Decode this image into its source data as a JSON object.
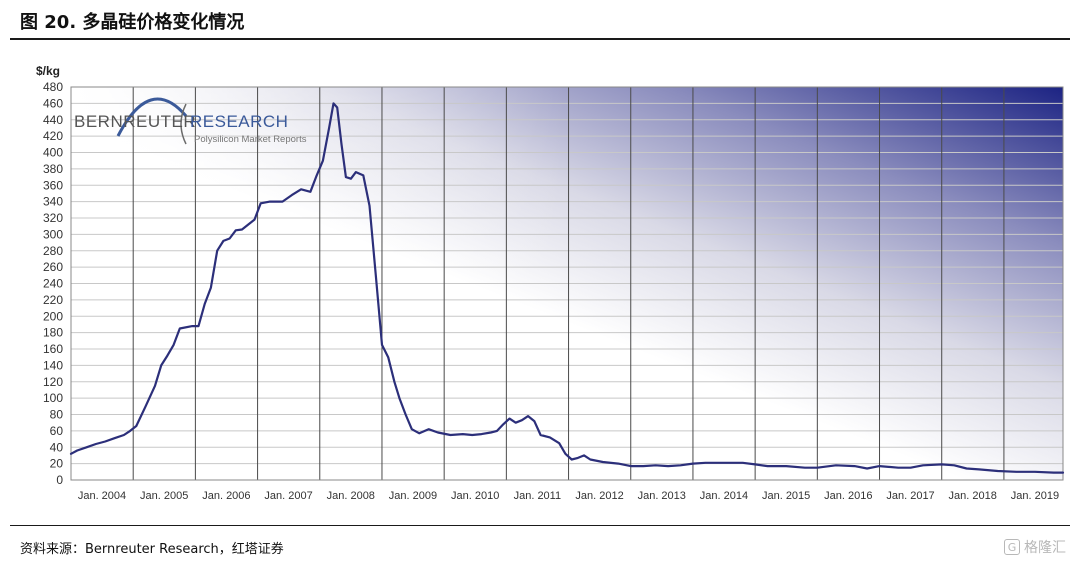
{
  "header": {
    "title": "图 20. 多晶硅价格变化情况"
  },
  "footer": {
    "source": "资料来源：Bernreuter Research，红塔证券",
    "watermark_text": "格隆汇",
    "watermark_icon": "G"
  },
  "logo": {
    "brand_left": "BERNREUTER",
    "brand_right": "RESEARCH",
    "tagline": "Polysilicon Market Reports"
  },
  "chart_data": {
    "type": "line",
    "title": "",
    "ylabel": "$/kg",
    "xlabel": "",
    "ylim": [
      0,
      480
    ],
    "y_ticks": [
      0,
      20,
      40,
      60,
      80,
      100,
      120,
      140,
      160,
      180,
      200,
      220,
      240,
      260,
      280,
      300,
      320,
      340,
      360,
      380,
      400,
      420,
      440,
      460,
      480
    ],
    "xlim": [
      2004.0,
      2019.95
    ],
    "x_ticks": [
      {
        "x": 2004,
        "label": "Jan. 2004"
      },
      {
        "x": 2005,
        "label": "Jan. 2005"
      },
      {
        "x": 2006,
        "label": "Jan. 2006"
      },
      {
        "x": 2007,
        "label": "Jan. 2007"
      },
      {
        "x": 2008,
        "label": "Jan. 2008"
      },
      {
        "x": 2009,
        "label": "Jan. 2009"
      },
      {
        "x": 2010,
        "label": "Jan. 2010"
      },
      {
        "x": 2011,
        "label": "Jan. 2011"
      },
      {
        "x": 2012,
        "label": "Jan. 2012"
      },
      {
        "x": 2013,
        "label": "Jan. 2013"
      },
      {
        "x": 2014,
        "label": "Jan. 2014"
      },
      {
        "x": 2015,
        "label": "Jan. 2015"
      },
      {
        "x": 2016,
        "label": "Jan. 2016"
      },
      {
        "x": 2017,
        "label": "Jan. 2017"
      },
      {
        "x": 2018,
        "label": "Jan. 2018"
      },
      {
        "x": 2019,
        "label": "Jan. 2019"
      }
    ],
    "grid": true,
    "line_color": "#2c2f7a",
    "series": [
      {
        "name": "",
        "points": [
          [
            2004.0,
            32
          ],
          [
            2004.1,
            36
          ],
          [
            2004.25,
            40
          ],
          [
            2004.4,
            44
          ],
          [
            2004.55,
            47
          ],
          [
            2004.7,
            51
          ],
          [
            2004.85,
            55
          ],
          [
            2004.95,
            60
          ],
          [
            2005.05,
            66
          ],
          [
            2005.2,
            90
          ],
          [
            2005.35,
            115
          ],
          [
            2005.45,
            140
          ],
          [
            2005.55,
            152
          ],
          [
            2005.65,
            165
          ],
          [
            2005.75,
            185
          ],
          [
            2005.95,
            188
          ],
          [
            2006.05,
            188
          ],
          [
            2006.15,
            215
          ],
          [
            2006.25,
            235
          ],
          [
            2006.35,
            280
          ],
          [
            2006.45,
            292
          ],
          [
            2006.55,
            295
          ],
          [
            2006.65,
            305
          ],
          [
            2006.75,
            306
          ],
          [
            2006.85,
            312
          ],
          [
            2006.95,
            318
          ],
          [
            2007.05,
            338
          ],
          [
            2007.2,
            340
          ],
          [
            2007.4,
            340
          ],
          [
            2007.55,
            348
          ],
          [
            2007.7,
            355
          ],
          [
            2007.85,
            352
          ],
          [
            2007.95,
            372
          ],
          [
            2008.05,
            390
          ],
          [
            2008.15,
            430
          ],
          [
            2008.22,
            460
          ],
          [
            2008.28,
            455
          ],
          [
            2008.35,
            410
          ],
          [
            2008.42,
            370
          ],
          [
            2008.5,
            368
          ],
          [
            2008.58,
            376
          ],
          [
            2008.7,
            372
          ],
          [
            2008.8,
            335
          ],
          [
            2008.9,
            250
          ],
          [
            2009.0,
            165
          ],
          [
            2009.1,
            150
          ],
          [
            2009.2,
            120
          ],
          [
            2009.28,
            100
          ],
          [
            2009.38,
            80
          ],
          [
            2009.48,
            62
          ],
          [
            2009.6,
            57
          ],
          [
            2009.75,
            62
          ],
          [
            2009.9,
            58
          ],
          [
            2010.1,
            55
          ],
          [
            2010.3,
            56
          ],
          [
            2010.45,
            55
          ],
          [
            2010.6,
            56
          ],
          [
            2010.75,
            58
          ],
          [
            2010.85,
            60
          ],
          [
            2010.95,
            68
          ],
          [
            2011.05,
            75
          ],
          [
            2011.15,
            70
          ],
          [
            2011.25,
            73
          ],
          [
            2011.35,
            78
          ],
          [
            2011.45,
            72
          ],
          [
            2011.55,
            55
          ],
          [
            2011.7,
            52
          ],
          [
            2011.85,
            45
          ],
          [
            2011.95,
            32
          ],
          [
            2012.05,
            25
          ],
          [
            2012.15,
            27
          ],
          [
            2012.25,
            30
          ],
          [
            2012.35,
            25
          ],
          [
            2012.55,
            22
          ],
          [
            2012.8,
            20
          ],
          [
            2013.0,
            17
          ],
          [
            2013.2,
            17
          ],
          [
            2013.4,
            18
          ],
          [
            2013.6,
            17
          ],
          [
            2013.8,
            18
          ],
          [
            2014.0,
            20
          ],
          [
            2014.2,
            21
          ],
          [
            2014.5,
            21
          ],
          [
            2014.8,
            21
          ],
          [
            2015.0,
            19
          ],
          [
            2015.2,
            17
          ],
          [
            2015.5,
            17
          ],
          [
            2015.8,
            15
          ],
          [
            2016.0,
            15
          ],
          [
            2016.3,
            18
          ],
          [
            2016.6,
            17
          ],
          [
            2016.8,
            14
          ],
          [
            2017.0,
            17
          ],
          [
            2017.3,
            15
          ],
          [
            2017.5,
            15
          ],
          [
            2017.7,
            18
          ],
          [
            2018.0,
            19
          ],
          [
            2018.2,
            18
          ],
          [
            2018.4,
            14
          ],
          [
            2018.6,
            13
          ],
          [
            2018.9,
            11
          ],
          [
            2019.2,
            10
          ],
          [
            2019.5,
            10
          ],
          [
            2019.8,
            9
          ],
          [
            2019.95,
            9
          ]
        ]
      }
    ]
  }
}
